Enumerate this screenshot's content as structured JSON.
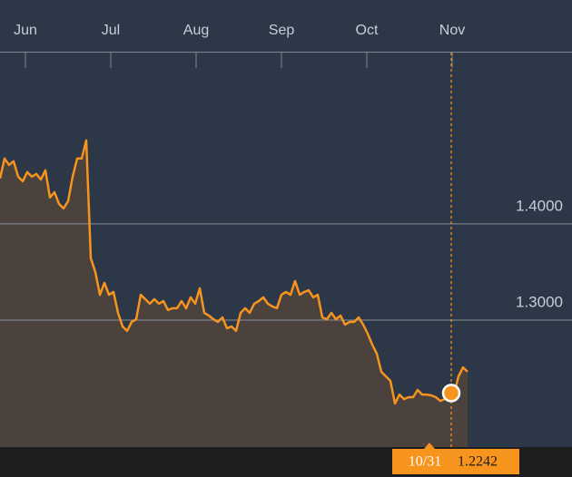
{
  "chart_data": {
    "type": "line",
    "months": [
      "Jun",
      "Jul",
      "Aug",
      "Sep",
      "Oct",
      "Nov"
    ],
    "color": "#f7941d",
    "ylim": [
      1.168,
      1.562
    ],
    "yticks": [
      {
        "value": 1.4,
        "label": "1.4000"
      },
      {
        "value": 1.3,
        "label": "1.3000"
      }
    ],
    "grid": true,
    "values": [
      1.4472,
      1.4679,
      1.4613,
      1.4651,
      1.4491,
      1.4443,
      1.4538,
      1.4491,
      1.4519,
      1.4462,
      1.4557,
      1.4274,
      1.433,
      1.4208,
      1.416,
      1.4236,
      1.4491,
      1.4679,
      1.4679,
      1.4868,
      1.3642,
      1.35,
      1.3264,
      1.3387,
      1.3264,
      1.3292,
      1.3075,
      1.2934,
      1.2887,
      1.2981,
      1.3009,
      1.3264,
      1.3217,
      1.317,
      1.3217,
      1.317,
      1.3198,
      1.3104,
      1.3123,
      1.3123,
      1.3198,
      1.3123,
      1.3236,
      1.317,
      1.333,
      1.3075,
      1.3047,
      1.3009,
      1.2981,
      1.3028,
      1.2915,
      1.2934,
      1.2887,
      1.3075,
      1.3123,
      1.3075,
      1.317,
      1.3198,
      1.3236,
      1.317,
      1.3142,
      1.3123,
      1.3264,
      1.3292,
      1.3264,
      1.3406,
      1.3264,
      1.3292,
      1.3311,
      1.3236,
      1.3264,
      1.3028,
      1.3009,
      1.3075,
      1.3009,
      1.3047,
      1.2953,
      1.2981,
      1.2981,
      1.3028,
      1.2953,
      1.2858,
      1.2745,
      1.2651,
      1.2462,
      1.2415,
      1.2368,
      1.2132,
      1.2226,
      1.2179,
      1.2198,
      1.2198,
      1.2274,
      1.2226,
      1.2226,
      1.2217,
      1.2198,
      1.216,
      1.2179,
      1.2226,
      1.2226,
      1.2415,
      1.2509,
      1.2462
    ],
    "highlight": {
      "label": "10/31",
      "value": 1.2242
    }
  }
}
